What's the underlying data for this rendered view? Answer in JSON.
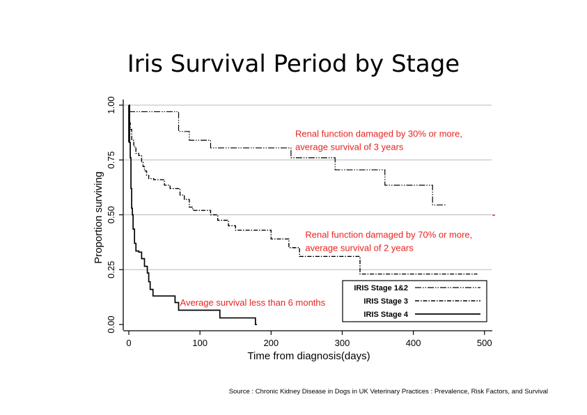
{
  "title": "Iris Survival Period by Stage",
  "source": "Source : Chronic Kidney Disease in Dogs in UK Veterinary Practices : Prevalence, Risk Factors, and Survival",
  "chart_data": {
    "type": "line",
    "subtype": "kaplan-meier-step",
    "xlabel": "Time from diagnosis(days)",
    "ylabel": "Proportion surviving",
    "xlim": [
      0,
      510
    ],
    "ylim": [
      0,
      1
    ],
    "xticks": [
      0,
      100,
      200,
      300,
      400,
      500
    ],
    "yticks": [
      0,
      0.25,
      0.5,
      0.75,
      1.0
    ],
    "xtick_labels": [
      "0",
      "100",
      "200",
      "300",
      "400",
      "500"
    ],
    "ytick_labels": [
      "0.00",
      "0.25",
      "0.50",
      "0.75",
      "1.00"
    ],
    "grid": "horizontal",
    "legend_position": "bottom-right",
    "series": [
      {
        "name": "IRIS Stage 1&2",
        "color": "#000000",
        "dash": "long-dash-dot",
        "x": [
          0,
          70,
          85,
          115,
          228,
          290,
          360,
          427,
          445
        ],
        "y": [
          0.97,
          0.88,
          0.84,
          0.805,
          0.76,
          0.705,
          0.635,
          0.545,
          0.545
        ]
      },
      {
        "name": "IRIS Stage 3",
        "color": "#000000",
        "dash": "dash-dot",
        "x": [
          0,
          2,
          4,
          7,
          10,
          14,
          18,
          20,
          22,
          25,
          28,
          35,
          50,
          58,
          72,
          78,
          85,
          90,
          100,
          115,
          125,
          140,
          150,
          200,
          225,
          240,
          245,
          325,
          480,
          490
        ],
        "y": [
          0.92,
          0.89,
          0.84,
          0.81,
          0.78,
          0.77,
          0.74,
          0.72,
          0.7,
          0.68,
          0.665,
          0.66,
          0.635,
          0.62,
          0.59,
          0.57,
          0.535,
          0.52,
          0.52,
          0.5,
          0.475,
          0.45,
          0.43,
          0.39,
          0.35,
          0.31,
          0.31,
          0.23,
          0.23,
          0.23
        ]
      },
      {
        "name": "IRIS Stage 4",
        "color": "#000000",
        "dash": "solid",
        "x": [
          0,
          1,
          2,
          3,
          4,
          5,
          6,
          8,
          10,
          14,
          18,
          22,
          26,
          28,
          30,
          34,
          50,
          65,
          70,
          128,
          178,
          180
        ],
        "y": [
          1.0,
          0.83,
          0.76,
          0.62,
          0.53,
          0.5,
          0.435,
          0.37,
          0.335,
          0.33,
          0.3,
          0.265,
          0.235,
          0.195,
          0.16,
          0.13,
          0.13,
          0.1,
          0.065,
          0.03,
          0.0,
          0.0
        ]
      }
    ],
    "annotations": [
      {
        "text": "Renal function damaged by 30% or more,",
        "x": 234,
        "y": 0.855,
        "color": "#e8231f"
      },
      {
        "text": "average survival of 3 years",
        "x": 234,
        "y": 0.795,
        "color": "#e8231f"
      },
      {
        "text": "Renal function damaged by 70% or more,",
        "x": 248,
        "y": 0.395,
        "color": "#e8231f"
      },
      {
        "text": "average survival of 2 years",
        "x": 248,
        "y": 0.335,
        "color": "#e8231f"
      },
      {
        "text": "Average survival less than 6 months",
        "x": 72,
        "y": 0.085,
        "color": "#e8231f"
      }
    ]
  }
}
